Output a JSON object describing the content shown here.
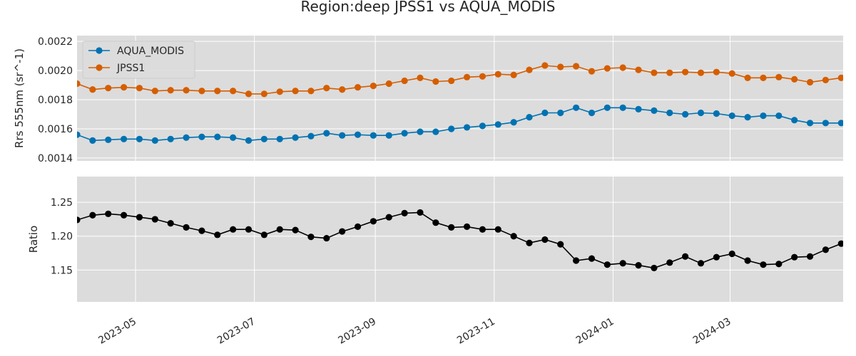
{
  "colors": {
    "aqua": "#0072b2",
    "jpss": "#d55e00",
    "ratio": "#000000",
    "panel_bg": "#dcdcdc",
    "grid": "#ffffff"
  },
  "chart_data": [
    {
      "type": "line",
      "title": "Region:deep JPSS1 vs AQUA_MODIS",
      "ylabel": "Rrs 555nm (sr^-1)",
      "xlim": [
        "2023-04-01",
        "2024-04-28"
      ],
      "ylim": [
        0.00138,
        0.00224
      ],
      "yticks": [
        "0.0014",
        "0.0016",
        "0.0018",
        "0.0020",
        "0.0022"
      ],
      "grid": true,
      "legend_position": "top-left",
      "x": [
        "2023-04-01",
        "2023-04-09",
        "2023-04-17",
        "2023-04-25",
        "2023-05-03",
        "2023-05-11",
        "2023-05-19",
        "2023-05-27",
        "2023-06-04",
        "2023-06-12",
        "2023-06-20",
        "2023-06-28",
        "2023-07-06",
        "2023-07-14",
        "2023-07-22",
        "2023-07-30",
        "2023-08-07",
        "2023-08-15",
        "2023-08-23",
        "2023-08-31",
        "2023-09-08",
        "2023-09-16",
        "2023-09-24",
        "2023-10-02",
        "2023-10-10",
        "2023-10-18",
        "2023-10-26",
        "2023-11-03",
        "2023-11-11",
        "2023-11-19",
        "2023-11-27",
        "2023-12-05",
        "2023-12-13",
        "2023-12-21",
        "2023-12-29",
        "2024-01-06",
        "2024-01-14",
        "2024-01-22",
        "2024-01-30",
        "2024-02-07",
        "2024-02-15",
        "2024-02-23",
        "2024-03-02",
        "2024-03-10",
        "2024-03-18",
        "2024-03-26",
        "2024-04-03",
        "2024-04-11",
        "2024-04-19",
        "2024-04-27"
      ],
      "series": [
        {
          "name": "AQUA_MODIS",
          "color_key": "aqua",
          "values": [
            0.00156,
            0.00152,
            0.001525,
            0.00153,
            0.00153,
            0.00152,
            0.00153,
            0.00154,
            0.001545,
            0.001545,
            0.00154,
            0.00152,
            0.00153,
            0.00153,
            0.00154,
            0.00155,
            0.00157,
            0.001555,
            0.00156,
            0.001555,
            0.001555,
            0.00157,
            0.00158,
            0.00158,
            0.0016,
            0.00161,
            0.00162,
            0.00163,
            0.001645,
            0.00168,
            0.00171,
            0.00171,
            0.001745,
            0.00171,
            0.001745,
            0.001745,
            0.001735,
            0.001725,
            0.00171,
            0.0017,
            0.00171,
            0.001705,
            0.00169,
            0.00168,
            0.00169,
            0.00169,
            0.00166,
            0.00164,
            0.00164,
            0.00164
          ]
        },
        {
          "name": "JPSS1",
          "color_key": "jpss",
          "values": [
            0.00191,
            0.00187,
            0.00188,
            0.001885,
            0.00188,
            0.00186,
            0.001865,
            0.001865,
            0.00186,
            0.00186,
            0.00186,
            0.00184,
            0.00184,
            0.001855,
            0.00186,
            0.00186,
            0.00188,
            0.00187,
            0.001885,
            0.001895,
            0.00191,
            0.00193,
            0.00195,
            0.001925,
            0.00193,
            0.001955,
            0.00196,
            0.001975,
            0.00197,
            0.002005,
            0.002035,
            0.002025,
            0.00203,
            0.001995,
            0.002015,
            0.00202,
            0.002005,
            0.001985,
            0.001985,
            0.00199,
            0.001985,
            0.00199,
            0.00198,
            0.00195,
            0.00195,
            0.001955,
            0.00194,
            0.00192,
            0.001935,
            0.00195
          ]
        }
      ]
    },
    {
      "type": "line",
      "ylabel": "Ratio",
      "xlim": [
        "2023-04-01",
        "2024-04-28"
      ],
      "ylim": [
        1.103,
        1.288
      ],
      "yticks": [
        "1.15",
        "1.20",
        "1.25"
      ],
      "grid": true,
      "x_tick_labels": [
        "2023-05",
        "2023-07",
        "2023-09",
        "2023-11",
        "2024-01",
        "2024-03"
      ],
      "x_ticks": [
        "2023-05-01",
        "2023-07-01",
        "2023-09-01",
        "2023-11-01",
        "2024-01-01",
        "2024-03-01"
      ],
      "x": [
        "2023-04-01",
        "2023-04-09",
        "2023-04-17",
        "2023-04-25",
        "2023-05-03",
        "2023-05-11",
        "2023-05-19",
        "2023-05-27",
        "2023-06-04",
        "2023-06-12",
        "2023-06-20",
        "2023-06-28",
        "2023-07-06",
        "2023-07-14",
        "2023-07-22",
        "2023-07-30",
        "2023-08-07",
        "2023-08-15",
        "2023-08-23",
        "2023-08-31",
        "2023-09-08",
        "2023-09-16",
        "2023-09-24",
        "2023-10-02",
        "2023-10-10",
        "2023-10-18",
        "2023-10-26",
        "2023-11-03",
        "2023-11-11",
        "2023-11-19",
        "2023-11-27",
        "2023-12-05",
        "2023-12-13",
        "2023-12-21",
        "2023-12-29",
        "2024-01-06",
        "2024-01-14",
        "2024-01-22",
        "2024-01-30",
        "2024-02-07",
        "2024-02-15",
        "2024-02-23",
        "2024-03-02",
        "2024-03-10",
        "2024-03-18",
        "2024-03-26",
        "2024-04-03",
        "2024-04-11",
        "2024-04-19",
        "2024-04-27"
      ],
      "series": [
        {
          "color_key": "ratio",
          "values": [
            1.224,
            1.231,
            1.233,
            1.231,
            1.228,
            1.225,
            1.219,
            1.213,
            1.208,
            1.202,
            1.21,
            1.21,
            1.202,
            1.21,
            1.209,
            1.199,
            1.197,
            1.207,
            1.214,
            1.222,
            1.228,
            1.234,
            1.235,
            1.22,
            1.213,
            1.214,
            1.21,
            1.21,
            1.2,
            1.19,
            1.195,
            1.188,
            1.164,
            1.167,
            1.158,
            1.16,
            1.157,
            1.153,
            1.161,
            1.17,
            1.16,
            1.169,
            1.174,
            1.164,
            1.158,
            1.159,
            1.169,
            1.17,
            1.18,
            1.189
          ]
        }
      ]
    }
  ]
}
